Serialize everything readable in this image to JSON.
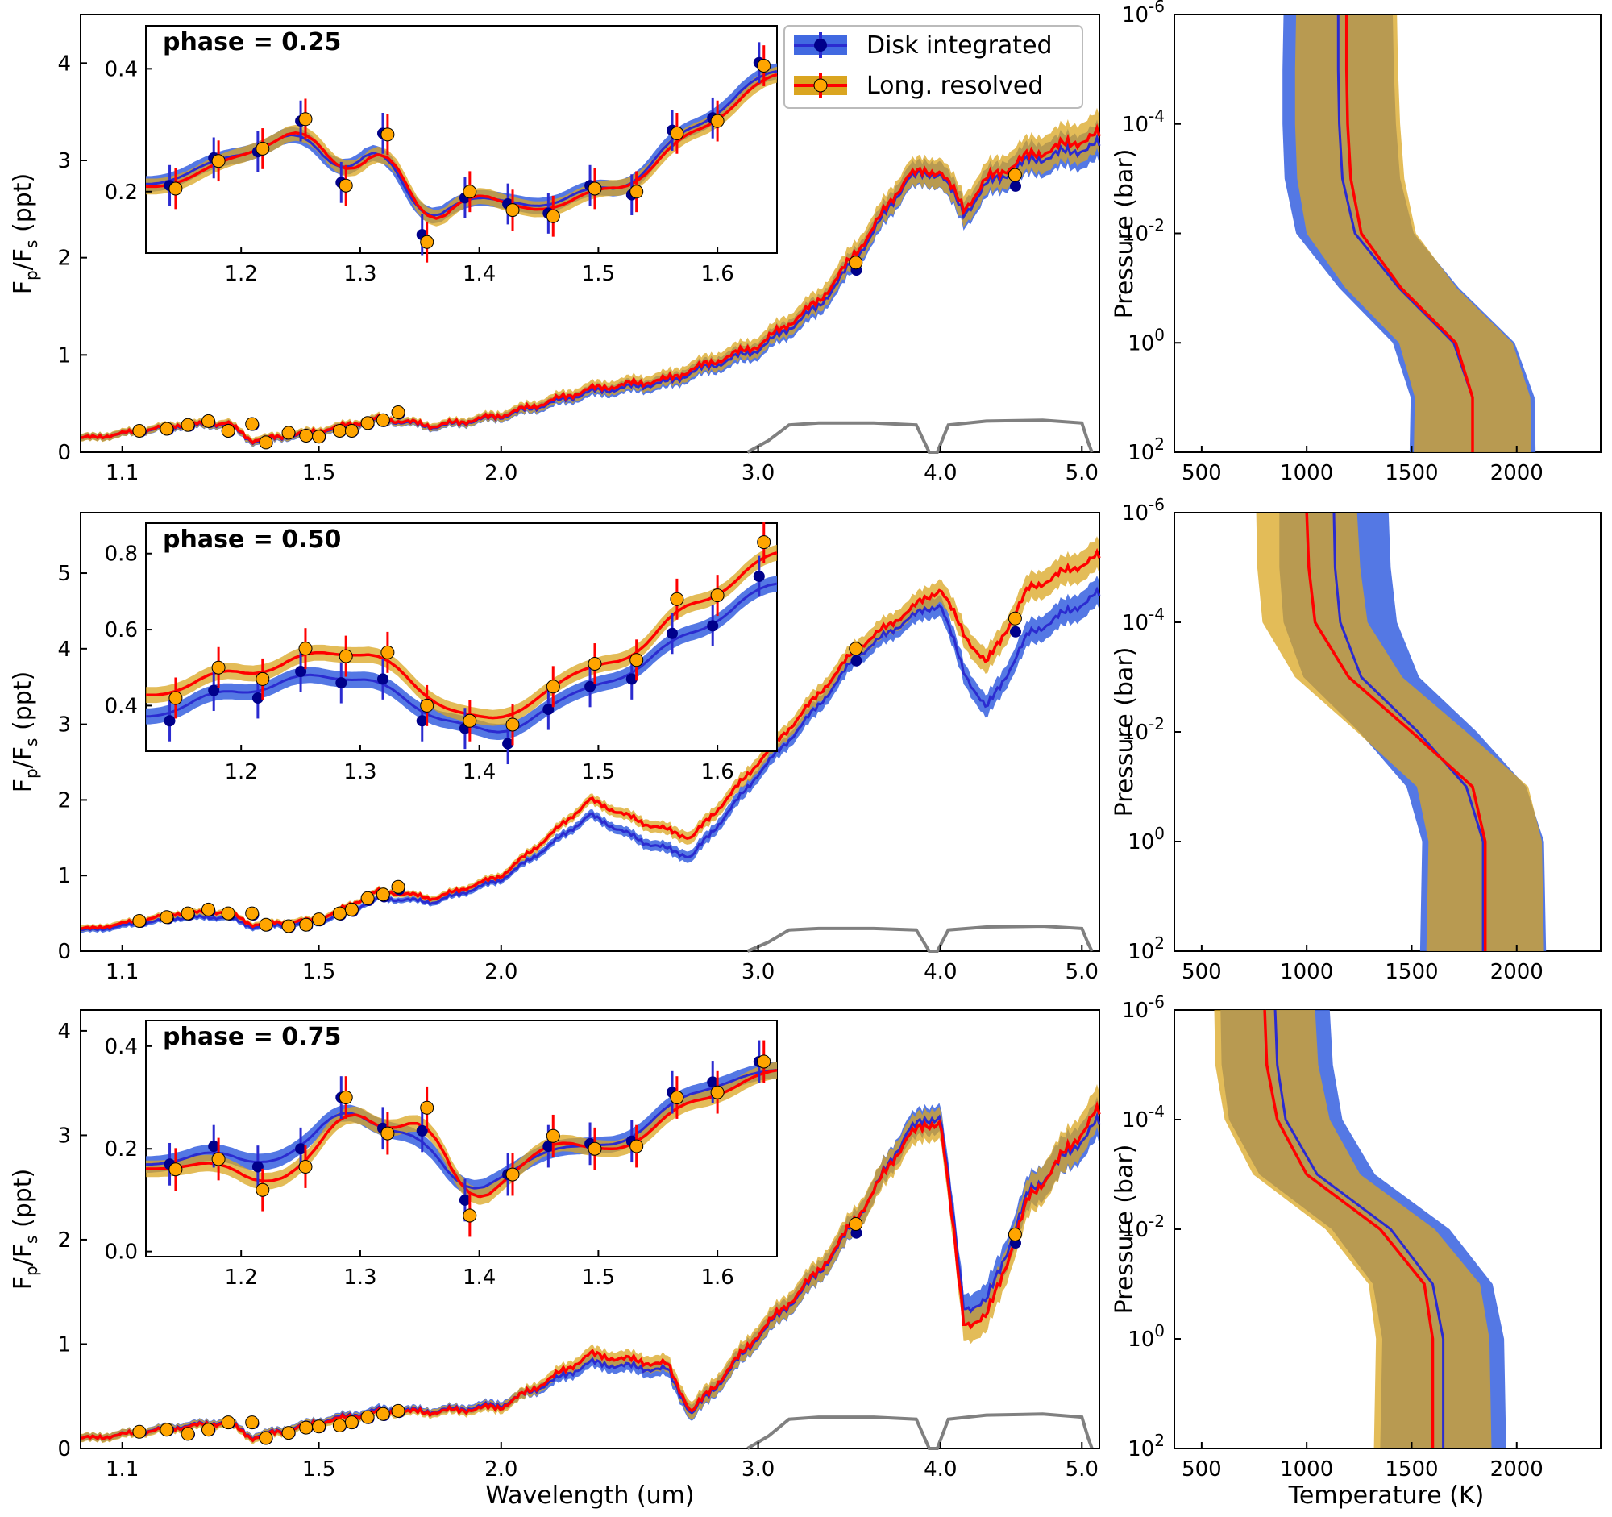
{
  "figure": {
    "xlabel_spectrum": "Wavelength (um)",
    "ylabel_spectrum": "F_p/F_s (ppt)",
    "ylabel_profile": "Pressure (bar)",
    "xlabel_profile": "Temperature (K)",
    "legend": {
      "disk": "Disk integrated",
      "long": "Long. resolved"
    },
    "colors": {
      "disk_line": "#2b2bd0",
      "disk_band": "#4169e1",
      "long_line": "#ff0000",
      "long_band": "#daa520",
      "overlap": "#a67c52",
      "throughput": "#808080",
      "marker_long": "#ffa500",
      "marker_disk": "#00008b"
    }
  },
  "chart_data": [
    {
      "type": "line",
      "title": "phase = 0.25",
      "x_ticks": [
        "1.1",
        "1.5",
        "2.0",
        "3.0",
        "4.0",
        "5.0"
      ],
      "y_ticks": [
        "0",
        "1",
        "2",
        "3",
        "4"
      ],
      "ylim": [
        0,
        4.5
      ],
      "series": [
        {
          "name": "Long. resolved",
          "x": [
            1.05,
            1.2,
            1.3,
            1.35,
            1.5,
            1.65,
            1.8,
            2.0,
            2.3,
            2.6,
            2.7,
            3.0,
            3.3,
            3.5,
            3.8,
            4.0,
            4.15,
            4.3,
            4.6,
            5.1
          ],
          "values": [
            0.15,
            0.28,
            0.3,
            0.12,
            0.22,
            0.35,
            0.27,
            0.38,
            0.65,
            0.75,
            0.85,
            1.1,
            1.55,
            2.05,
            2.85,
            2.9,
            2.5,
            2.8,
            3.05,
            3.25
          ]
        },
        {
          "name": "Disk integrated",
          "x": [
            1.05,
            1.2,
            1.3,
            1.35,
            1.5,
            1.65,
            1.8,
            2.0,
            2.3,
            2.6,
            2.7,
            3.0,
            3.3,
            3.5,
            3.8,
            4.0,
            4.15,
            4.3,
            4.6,
            5.1
          ],
          "values": [
            0.15,
            0.27,
            0.29,
            0.11,
            0.21,
            0.34,
            0.26,
            0.37,
            0.62,
            0.72,
            0.82,
            1.06,
            1.5,
            2.0,
            2.82,
            2.88,
            2.45,
            2.75,
            3.0,
            3.15
          ]
        }
      ],
      "inset": {
        "xlim": [
          1.12,
          1.65
        ],
        "ylim": [
          0.1,
          0.47
        ],
        "x_ticks": [
          "1.2",
          "1.3",
          "1.4",
          "1.5",
          "1.6"
        ],
        "y_ticks": [
          "0.2",
          "0.4"
        ],
        "disk_points": [
          [
            1.14,
            0.21
          ],
          [
            1.177,
            0.255
          ],
          [
            1.214,
            0.265
          ],
          [
            1.25,
            0.315
          ],
          [
            1.284,
            0.215
          ],
          [
            1.319,
            0.295
          ],
          [
            1.352,
            0.13
          ],
          [
            1.388,
            0.19
          ],
          [
            1.424,
            0.18
          ],
          [
            1.458,
            0.165
          ],
          [
            1.493,
            0.21
          ],
          [
            1.528,
            0.195
          ],
          [
            1.562,
            0.3
          ],
          [
            1.596,
            0.32
          ],
          [
            1.635,
            0.41
          ]
        ],
        "long_points": [
          [
            1.145,
            0.205
          ],
          [
            1.181,
            0.25
          ],
          [
            1.218,
            0.27
          ],
          [
            1.254,
            0.318
          ],
          [
            1.288,
            0.21
          ],
          [
            1.323,
            0.293
          ],
          [
            1.356,
            0.118
          ],
          [
            1.392,
            0.2
          ],
          [
            1.428,
            0.17
          ],
          [
            1.462,
            0.16
          ],
          [
            1.497,
            0.205
          ],
          [
            1.532,
            0.2
          ],
          [
            1.566,
            0.295
          ],
          [
            1.6,
            0.315
          ],
          [
            1.639,
            0.405
          ]
        ]
      },
      "profile": {
        "xlim": [
          370,
          2400
        ],
        "x_ticks": [
          "500",
          "1000",
          "1500",
          "2000"
        ],
        "y_ticks": [
          "10^-6",
          "10^-4",
          "10^-2",
          "10^0",
          "10^2"
        ],
        "long_T": [
          1190,
          1190,
          1195,
          1210,
          1260,
          1450,
          1710,
          1790,
          1790
        ],
        "disk_T": [
          1150,
          1150,
          1155,
          1170,
          1230,
          1440,
          1700,
          1790,
          1790
        ]
      },
      "points_spectrum": [
        [
          1.13,
          0.22
        ],
        [
          1.18,
          0.24
        ],
        [
          1.22,
          0.28
        ],
        [
          1.26,
          0.32
        ],
        [
          1.3,
          0.22
        ],
        [
          1.35,
          0.29
        ],
        [
          1.38,
          0.1
        ],
        [
          1.43,
          0.2
        ],
        [
          1.47,
          0.17
        ],
        [
          1.5,
          0.16
        ],
        [
          1.55,
          0.22
        ],
        [
          1.58,
          0.22
        ],
        [
          1.62,
          0.3
        ],
        [
          1.66,
          0.33
        ],
        [
          1.7,
          0.41
        ],
        [
          3.5,
          1.95
        ],
        [
          4.5,
          2.85
        ]
      ]
    },
    {
      "type": "line",
      "title": "phase = 0.50",
      "x_ticks": [
        "1.1",
        "1.5",
        "2.0",
        "3.0",
        "4.0",
        "5.0"
      ],
      "y_ticks": [
        "0",
        "1",
        "2",
        "3",
        "4",
        "5"
      ],
      "ylim": [
        0,
        5.8
      ],
      "series": [
        {
          "name": "Long. resolved",
          "x": [
            1.05,
            1.2,
            1.3,
            1.35,
            1.5,
            1.65,
            1.8,
            2.0,
            2.3,
            2.5,
            2.7,
            3.0,
            3.3,
            3.5,
            3.8,
            4.0,
            4.15,
            4.3,
            4.6,
            5.1
          ],
          "values": [
            0.3,
            0.5,
            0.52,
            0.35,
            0.42,
            0.8,
            0.7,
            1.0,
            2.0,
            1.7,
            1.5,
            2.5,
            3.4,
            4.0,
            4.5,
            4.8,
            4.2,
            3.8,
            4.8,
            5.2
          ]
        },
        {
          "name": "Disk integrated",
          "x": [
            1.05,
            1.2,
            1.3,
            1.35,
            1.5,
            1.65,
            1.8,
            2.0,
            2.3,
            2.5,
            2.7,
            3.0,
            3.3,
            3.5,
            3.8,
            4.0,
            4.15,
            4.3,
            4.6,
            5.1
          ],
          "values": [
            0.28,
            0.44,
            0.45,
            0.32,
            0.38,
            0.7,
            0.65,
            0.95,
            1.8,
            1.45,
            1.25,
            2.35,
            3.25,
            3.9,
            4.4,
            4.6,
            3.7,
            3.2,
            4.2,
            4.7
          ]
        }
      ],
      "inset": {
        "xlim": [
          1.12,
          1.65
        ],
        "ylim": [
          0.28,
          0.88
        ],
        "x_ticks": [
          "1.2",
          "1.3",
          "1.4",
          "1.5",
          "1.6"
        ],
        "y_ticks": [
          "0.4",
          "0.6",
          "0.8"
        ],
        "disk_points": [
          [
            1.14,
            0.36
          ],
          [
            1.177,
            0.44
          ],
          [
            1.214,
            0.42
          ],
          [
            1.25,
            0.49
          ],
          [
            1.284,
            0.46
          ],
          [
            1.319,
            0.47
          ],
          [
            1.352,
            0.36
          ],
          [
            1.388,
            0.34
          ],
          [
            1.424,
            0.3
          ],
          [
            1.458,
            0.39
          ],
          [
            1.493,
            0.45
          ],
          [
            1.528,
            0.47
          ],
          [
            1.562,
            0.59
          ],
          [
            1.596,
            0.61
          ],
          [
            1.635,
            0.74
          ]
        ],
        "long_points": [
          [
            1.145,
            0.42
          ],
          [
            1.181,
            0.5
          ],
          [
            1.218,
            0.47
          ],
          [
            1.254,
            0.55
          ],
          [
            1.288,
            0.53
          ],
          [
            1.323,
            0.54
          ],
          [
            1.356,
            0.4
          ],
          [
            1.392,
            0.36
          ],
          [
            1.428,
            0.35
          ],
          [
            1.462,
            0.45
          ],
          [
            1.497,
            0.51
          ],
          [
            1.532,
            0.52
          ],
          [
            1.566,
            0.68
          ],
          [
            1.6,
            0.69
          ],
          [
            1.639,
            0.83
          ]
        ]
      },
      "profile": {
        "xlim": [
          370,
          2400
        ],
        "x_ticks": [
          "500",
          "1000",
          "1500",
          "2000"
        ],
        "y_ticks": [
          "10^-6",
          "10^-4",
          "10^-2",
          "10^0",
          "10^2"
        ],
        "long_T": [
          1000,
          1010,
          1040,
          1200,
          1500,
          1790,
          1850,
          1850,
          1850
        ],
        "disk_T": [
          1130,
          1135,
          1160,
          1260,
          1530,
          1760,
          1840,
          1840,
          1840
        ]
      },
      "points_spectrum": [
        [
          1.13,
          0.4
        ],
        [
          1.18,
          0.45
        ],
        [
          1.22,
          0.5
        ],
        [
          1.26,
          0.55
        ],
        [
          1.3,
          0.5
        ],
        [
          1.35,
          0.5
        ],
        [
          1.38,
          0.35
        ],
        [
          1.43,
          0.33
        ],
        [
          1.47,
          0.35
        ],
        [
          1.5,
          0.42
        ],
        [
          1.55,
          0.5
        ],
        [
          1.58,
          0.55
        ],
        [
          1.62,
          0.7
        ],
        [
          1.66,
          0.75
        ],
        [
          1.7,
          0.85
        ],
        [
          3.5,
          4.0
        ],
        [
          4.5,
          4.4
        ]
      ]
    },
    {
      "type": "line",
      "title": "phase = 0.75",
      "x_ticks": [
        "1.1",
        "1.5",
        "2.0",
        "3.0",
        "4.0",
        "5.0"
      ],
      "y_ticks": [
        "0",
        "1",
        "2",
        "3",
        "4"
      ],
      "ylim": [
        0,
        4.2
      ],
      "series": [
        {
          "name": "Long. resolved",
          "x": [
            1.05,
            1.2,
            1.3,
            1.35,
            1.5,
            1.65,
            1.8,
            2.0,
            2.3,
            2.6,
            2.7,
            3.0,
            3.3,
            3.5,
            3.8,
            4.0,
            4.15,
            4.3,
            4.6,
            5.1
          ],
          "values": [
            0.1,
            0.2,
            0.25,
            0.1,
            0.25,
            0.35,
            0.35,
            0.4,
            0.9,
            0.8,
            0.35,
            1.1,
            1.7,
            2.2,
            3.0,
            3.15,
            1.2,
            1.25,
            2.4,
            3.2
          ]
        },
        {
          "name": "Disk integrated",
          "x": [
            1.05,
            1.2,
            1.3,
            1.35,
            1.5,
            1.65,
            1.8,
            2.0,
            2.3,
            2.6,
            2.7,
            3.0,
            3.3,
            3.5,
            3.8,
            4.0,
            4.15,
            4.3,
            4.6,
            5.1
          ],
          "values": [
            0.1,
            0.21,
            0.26,
            0.11,
            0.26,
            0.37,
            0.36,
            0.42,
            0.82,
            0.75,
            0.33,
            1.08,
            1.68,
            2.18,
            3.05,
            3.2,
            1.35,
            1.4,
            2.45,
            3.1
          ]
        }
      ],
      "inset": {
        "xlim": [
          1.12,
          1.65
        ],
        "ylim": [
          -0.01,
          0.45
        ],
        "x_ticks": [
          "1.2",
          "1.3",
          "1.4",
          "1.5",
          "1.6"
        ],
        "y_ticks": [
          "0.0",
          "0.2",
          "0.4"
        ],
        "disk_points": [
          [
            1.14,
            0.17
          ],
          [
            1.177,
            0.205
          ],
          [
            1.214,
            0.165
          ],
          [
            1.25,
            0.2
          ],
          [
            1.284,
            0.3
          ],
          [
            1.319,
            0.24
          ],
          [
            1.352,
            0.235
          ],
          [
            1.388,
            0.1
          ],
          [
            1.424,
            0.15
          ],
          [
            1.458,
            0.205
          ],
          [
            1.493,
            0.21
          ],
          [
            1.528,
            0.215
          ],
          [
            1.562,
            0.31
          ],
          [
            1.596,
            0.33
          ],
          [
            1.635,
            0.37
          ]
        ],
        "long_points": [
          [
            1.145,
            0.16
          ],
          [
            1.181,
            0.18
          ],
          [
            1.218,
            0.12
          ],
          [
            1.254,
            0.165
          ],
          [
            1.288,
            0.3
          ],
          [
            1.323,
            0.23
          ],
          [
            1.356,
            0.28
          ],
          [
            1.392,
            0.07
          ],
          [
            1.428,
            0.15
          ],
          [
            1.462,
            0.225
          ],
          [
            1.497,
            0.2
          ],
          [
            1.532,
            0.205
          ],
          [
            1.566,
            0.3
          ],
          [
            1.6,
            0.31
          ],
          [
            1.639,
            0.37
          ]
        ]
      },
      "profile": {
        "xlim": [
          370,
          2400
        ],
        "x_ticks": [
          "500",
          "1000",
          "1500",
          "2000"
        ],
        "y_ticks": [
          "10^-6",
          "10^-4",
          "10^-2",
          "10^0",
          "10^2"
        ],
        "long_T": [
          800,
          810,
          860,
          1000,
          1350,
          1560,
          1600,
          1600,
          1600
        ],
        "disk_T": [
          850,
          860,
          900,
          1050,
          1400,
          1600,
          1650,
          1650,
          1650
        ]
      },
      "points_spectrum": [
        [
          1.13,
          0.16
        ],
        [
          1.18,
          0.18
        ],
        [
          1.22,
          0.14
        ],
        [
          1.26,
          0.18
        ],
        [
          1.3,
          0.25
        ],
        [
          1.35,
          0.25
        ],
        [
          1.38,
          0.1
        ],
        [
          1.43,
          0.15
        ],
        [
          1.47,
          0.2
        ],
        [
          1.5,
          0.21
        ],
        [
          1.55,
          0.22
        ],
        [
          1.58,
          0.25
        ],
        [
          1.62,
          0.3
        ],
        [
          1.66,
          0.33
        ],
        [
          1.7,
          0.36
        ],
        [
          3.5,
          2.15
        ],
        [
          4.5,
          2.05
        ]
      ]
    }
  ]
}
